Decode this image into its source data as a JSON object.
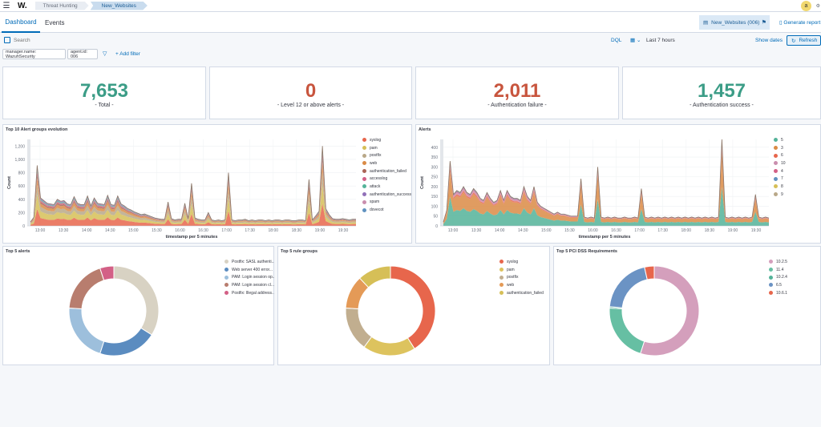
{
  "header": {
    "logo": "W.",
    "breadcrumbs": [
      "Threat Hunting",
      "New_Websites"
    ],
    "avatar_letter": "a"
  },
  "tabs": [
    "Dashboard",
    "Events"
  ],
  "agent_pill": "New_Websites (006)",
  "generate_report": "Generate report",
  "search": {
    "placeholder": "Search",
    "language": "DQL",
    "time_range": "Last 7 hours",
    "show_dates": "Show dates",
    "refresh": "Refresh"
  },
  "filters": [
    "manager.name: WazuhSecurity",
    "agent.id: 006"
  ],
  "add_filter": "+ Add filter",
  "metrics": [
    {
      "value": "7,653",
      "label": "- Total -",
      "color": "#3c9d87"
    },
    {
      "value": "0",
      "label": "- Level 12 or above alerts -",
      "color": "#c8553e"
    },
    {
      "value": "2,011",
      "label": "- Authentication failure -",
      "color": "#c8553e"
    },
    {
      "value": "1,457",
      "label": "- Authentication success -",
      "color": "#3c9d87"
    }
  ],
  "chart_data": [
    {
      "type": "area",
      "title": "Top 10 Alert groups evolution",
      "xlabel": "timestamp per 5 minutes",
      "ylabel": "Count",
      "ylim": [
        0,
        1300
      ],
      "y_ticks": [
        0,
        200,
        400,
        600,
        800,
        1000,
        1200
      ],
      "y_tick_labels": [
        "0",
        "200",
        "400",
        "600",
        "800",
        "1,000",
        "1,200"
      ],
      "x_ticks": [
        "13:00",
        "13:30",
        "14:00",
        "14:30",
        "15:00",
        "15:30",
        "16:00",
        "16:30",
        "17:00",
        "17:30",
        "18:00",
        "18:30",
        "19:00",
        "19:30"
      ],
      "legend": [
        "syslog",
        "pam",
        "postfix",
        "web",
        "authentication_failed",
        "accesslog",
        "attack",
        "authentication_success",
        "spam",
        "dovecot"
      ],
      "colors": [
        "#e7664c",
        "#d6bf57",
        "#b9a888",
        "#da8b45",
        "#aa6556",
        "#d36086",
        "#54b399",
        "#9170b8",
        "#ca8eae",
        "#6092c0"
      ],
      "total": [
        60,
        130,
        910,
        420,
        380,
        340,
        330,
        320,
        400,
        370,
        380,
        330,
        320,
        440,
        340,
        320,
        320,
        450,
        300,
        420,
        340,
        330,
        320,
        460,
        320,
        310,
        450,
        330,
        300,
        260,
        240,
        210,
        190,
        170,
        180,
        160,
        140,
        120,
        110,
        100,
        100,
        360,
        110,
        90,
        100,
        100,
        340,
        110,
        640,
        120,
        100,
        90,
        90,
        200,
        90,
        80,
        90,
        80,
        90,
        800,
        90,
        80,
        90,
        90,
        100,
        80,
        90,
        80,
        90,
        90,
        80,
        90,
        80,
        90,
        90,
        80,
        90,
        90,
        80,
        80,
        90,
        90,
        80,
        700,
        90,
        150,
        220,
        1200,
        260,
        170,
        110,
        100,
        100,
        110,
        100,
        90,
        100,
        100
      ],
      "shares": [
        0.28,
        0.24,
        0.16,
        0.12,
        0.06,
        0.05,
        0.04,
        0.03,
        0.01,
        0.01
      ]
    },
    {
      "type": "area",
      "title": "Alerts",
      "xlabel": "timestamp per 5 minutes",
      "ylabel": "Count",
      "ylim": [
        0,
        440
      ],
      "y_ticks": [
        0,
        50,
        100,
        150,
        200,
        250,
        300,
        350,
        400
      ],
      "y_tick_labels": [
        "0",
        "50",
        "100",
        "150",
        "200",
        "250",
        "300",
        "350",
        "400"
      ],
      "x_ticks": [
        "13:00",
        "13:30",
        "14:00",
        "14:30",
        "15:00",
        "15:30",
        "16:00",
        "16:30",
        "17:00",
        "17:30",
        "18:00",
        "18:30",
        "19:00",
        "19:30"
      ],
      "legend": [
        "5",
        "3",
        "6",
        "10",
        "4",
        "7",
        "8",
        "9"
      ],
      "colors": [
        "#54b399",
        "#da8b45",
        "#e7664c",
        "#ca8eae",
        "#d36086",
        "#6092c0",
        "#d6bf57",
        "#b9a888"
      ],
      "total": [
        20,
        80,
        330,
        160,
        180,
        170,
        200,
        170,
        160,
        190,
        170,
        140,
        130,
        170,
        140,
        120,
        130,
        180,
        130,
        180,
        150,
        140,
        140,
        130,
        200,
        150,
        130,
        200,
        120,
        100,
        90,
        80,
        70,
        60,
        70,
        60,
        60,
        55,
        50,
        50,
        50,
        240,
        45,
        40,
        45,
        40,
        300,
        45,
        40,
        45,
        40,
        45,
        40,
        40,
        45,
        40,
        40,
        45,
        40,
        190,
        45,
        40,
        45,
        40,
        45,
        40,
        45,
        40,
        45,
        40,
        45,
        40,
        45,
        40,
        45,
        40,
        45,
        40,
        45,
        40,
        45,
        40,
        45,
        440,
        45,
        40,
        45,
        40,
        45,
        40,
        45,
        40,
        45,
        160,
        45,
        40,
        45,
        40
      ],
      "shares": [
        0.45,
        0.4,
        0.05,
        0.04,
        0.03,
        0.02,
        0.005,
        0.005
      ]
    },
    {
      "type": "pie",
      "title": "Top 5 alerts",
      "labels": [
        "Postfix: SASL authenti...",
        "Web server 400 error...",
        "PAM: Login session op...",
        "PAM: Login session cl...",
        "Postfix: Illegal address..."
      ],
      "values": [
        34,
        21,
        21,
        19,
        5
      ],
      "colors": [
        "#d8d2c3",
        "#5b8cc0",
        "#9dbfdc",
        "#b87d6e",
        "#d36086"
      ]
    },
    {
      "type": "pie",
      "title": "Top 5 rule groups",
      "labels": [
        "syslog",
        "pam",
        "postfix",
        "web",
        "authentication_failed"
      ],
      "values": [
        41,
        19,
        16,
        12,
        12
      ],
      "colors": [
        "#e7664c",
        "#ddc35e",
        "#c1ae8f",
        "#e49a57",
        "#d6bf57"
      ]
    },
    {
      "type": "pie",
      "title": "Top 5 PCI DSS Requirements",
      "labels": [
        "10.2.5",
        "11.4",
        "10.2.4",
        "6.5",
        "10.6.1"
      ],
      "values": [
        55,
        21,
        0.5,
        20,
        3.5
      ],
      "colors": [
        "#d49fbc",
        "#66bfa3",
        "#54b399",
        "#6b93c4",
        "#e7664c"
      ]
    }
  ]
}
